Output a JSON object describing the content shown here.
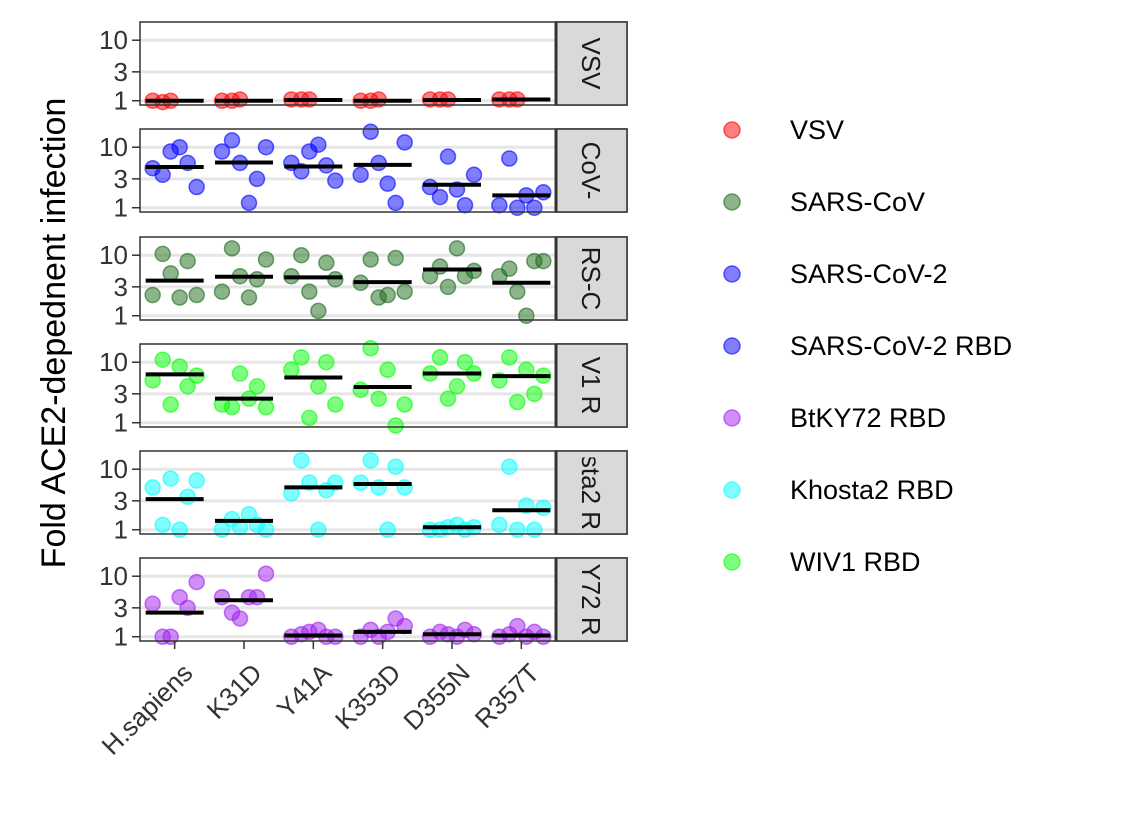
{
  "chart_data": {
    "type": "scatter",
    "ylabel": "Fold ACE2-depednent infection",
    "xlabel": "",
    "y_scale": "log",
    "ylim": [
      0.85,
      20
    ],
    "y_ticks": [
      1,
      3,
      10
    ],
    "y_tick_labels": [
      "1",
      "3",
      "10"
    ],
    "grid": true,
    "legend_position": "right",
    "categories": [
      "H.sapiens",
      "K31D",
      "Y41A",
      "K353D",
      "D355N",
      "R357T"
    ],
    "legend": [
      {
        "name": "VSV",
        "color": "#ff0000"
      },
      {
        "name": "SARS-CoV",
        "color": "#1a6b1a"
      },
      {
        "name": "SARS-CoV-2",
        "color": "#0000ff"
      },
      {
        "name": "SARS-CoV-2 RBD",
        "color": "#0000ff"
      },
      {
        "name": "BtKY72 RBD",
        "color": "#a020f0"
      },
      {
        "name": "Khosta2 RBD",
        "color": "#00ffff"
      },
      {
        "name": "WIV1 RBD",
        "color": "#00ff00"
      }
    ],
    "panels": [
      {
        "strip": "VSV",
        "color": "#ff0000",
        "points": [
          [
            1.0,
            0.95,
            1.0
          ],
          [
            1.0,
            1.0,
            1.05
          ],
          [
            1.05,
            1.05,
            1.05
          ],
          [
            1.0,
            1.0,
            1.05
          ],
          [
            1.05,
            1.05,
            1.05
          ],
          [
            1.05,
            1.05,
            1.05
          ]
        ],
        "means": [
          1.0,
          1.0,
          1.03,
          1.0,
          1.03,
          1.05
        ]
      },
      {
        "strip": "CoV-",
        "color": "#0000ff",
        "points": [
          [
            4.5,
            3.5,
            8.5,
            10,
            5.5,
            2.2
          ],
          [
            8.5,
            13,
            5.5,
            1.2,
            3,
            10
          ],
          [
            5.5,
            4,
            8.5,
            11,
            5,
            2.8
          ],
          [
            3.5,
            18,
            5.5,
            2.5,
            1.2,
            12
          ],
          [
            2.2,
            1.5,
            7,
            2,
            1.1,
            3.5
          ],
          [
            1.1,
            6.5,
            1.0,
            1.6,
            1.0,
            1.8
          ]
        ],
        "means": [
          4.7,
          5.6,
          4.8,
          5.1,
          2.4,
          1.6
        ]
      },
      {
        "strip": "RS-C",
        "color": "#1a6b1a",
        "points": [
          [
            2.2,
            10.5,
            5,
            2,
            8,
            2.2
          ],
          [
            2.5,
            13,
            4.5,
            2,
            4,
            8.5
          ],
          [
            4.5,
            10,
            2.5,
            1.2,
            7.5,
            4
          ],
          [
            3.5,
            8.5,
            2,
            2.2,
            9,
            2.5
          ],
          [
            4.5,
            6.5,
            3,
            13,
            4.5,
            5.5
          ],
          [
            4.5,
            6,
            2.5,
            1.0,
            8,
            8
          ]
        ],
        "means": [
          3.8,
          4.4,
          4.3,
          3.6,
          5.8,
          3.5
        ]
      },
      {
        "strip": "V1 R",
        "color": "#00ff00",
        "points": [
          [
            5,
            11,
            2,
            8.5,
            4,
            6
          ],
          [
            2,
            1.8,
            6.5,
            2.5,
            4,
            1.8
          ],
          [
            7.5,
            12,
            1.2,
            4,
            10,
            2
          ],
          [
            3.5,
            17,
            2.5,
            7.5,
            0.9,
            2
          ],
          [
            6.5,
            12,
            2.5,
            4,
            10,
            6.5
          ],
          [
            5,
            12,
            2.2,
            7.5,
            3,
            6
          ]
        ],
        "means": [
          6.3,
          2.5,
          5.6,
          3.9,
          6.5,
          5.9
        ]
      },
      {
        "strip": "sta2 R",
        "color": "#00ffff",
        "points": [
          [
            5,
            1.2,
            7,
            1.0,
            3.5,
            6.5
          ],
          [
            1.0,
            1.5,
            1.1,
            1.8,
            1.2,
            1.0
          ],
          [
            4,
            14,
            6,
            1.0,
            4.5,
            6
          ],
          [
            6,
            14,
            5,
            1.0,
            11,
            5
          ],
          [
            1.0,
            1.0,
            1.1,
            1.2,
            1.0,
            1.1
          ],
          [
            1.2,
            11,
            1.0,
            2.5,
            1.0,
            2.3
          ]
        ],
        "means": [
          3.2,
          1.4,
          5.0,
          5.7,
          1.1,
          2.1
        ]
      },
      {
        "strip": "Y72 R",
        "color": "#a020f0",
        "points": [
          [
            3.5,
            1.0,
            1.0,
            4.5,
            3,
            8
          ],
          [
            4.5,
            2.5,
            2,
            4.5,
            4.5,
            11
          ],
          [
            1.0,
            1.1,
            1.2,
            1.3,
            1.0,
            1.0
          ],
          [
            1.0,
            1.3,
            1.0,
            1.2,
            2,
            1.5
          ],
          [
            1.0,
            1.2,
            1.1,
            1.0,
            1.3,
            1.1
          ],
          [
            1.0,
            1.1,
            1.5,
            1.0,
            1.2,
            1.0
          ]
        ],
        "means": [
          2.5,
          4.0,
          1.05,
          1.2,
          1.1,
          1.05
        ]
      }
    ]
  }
}
